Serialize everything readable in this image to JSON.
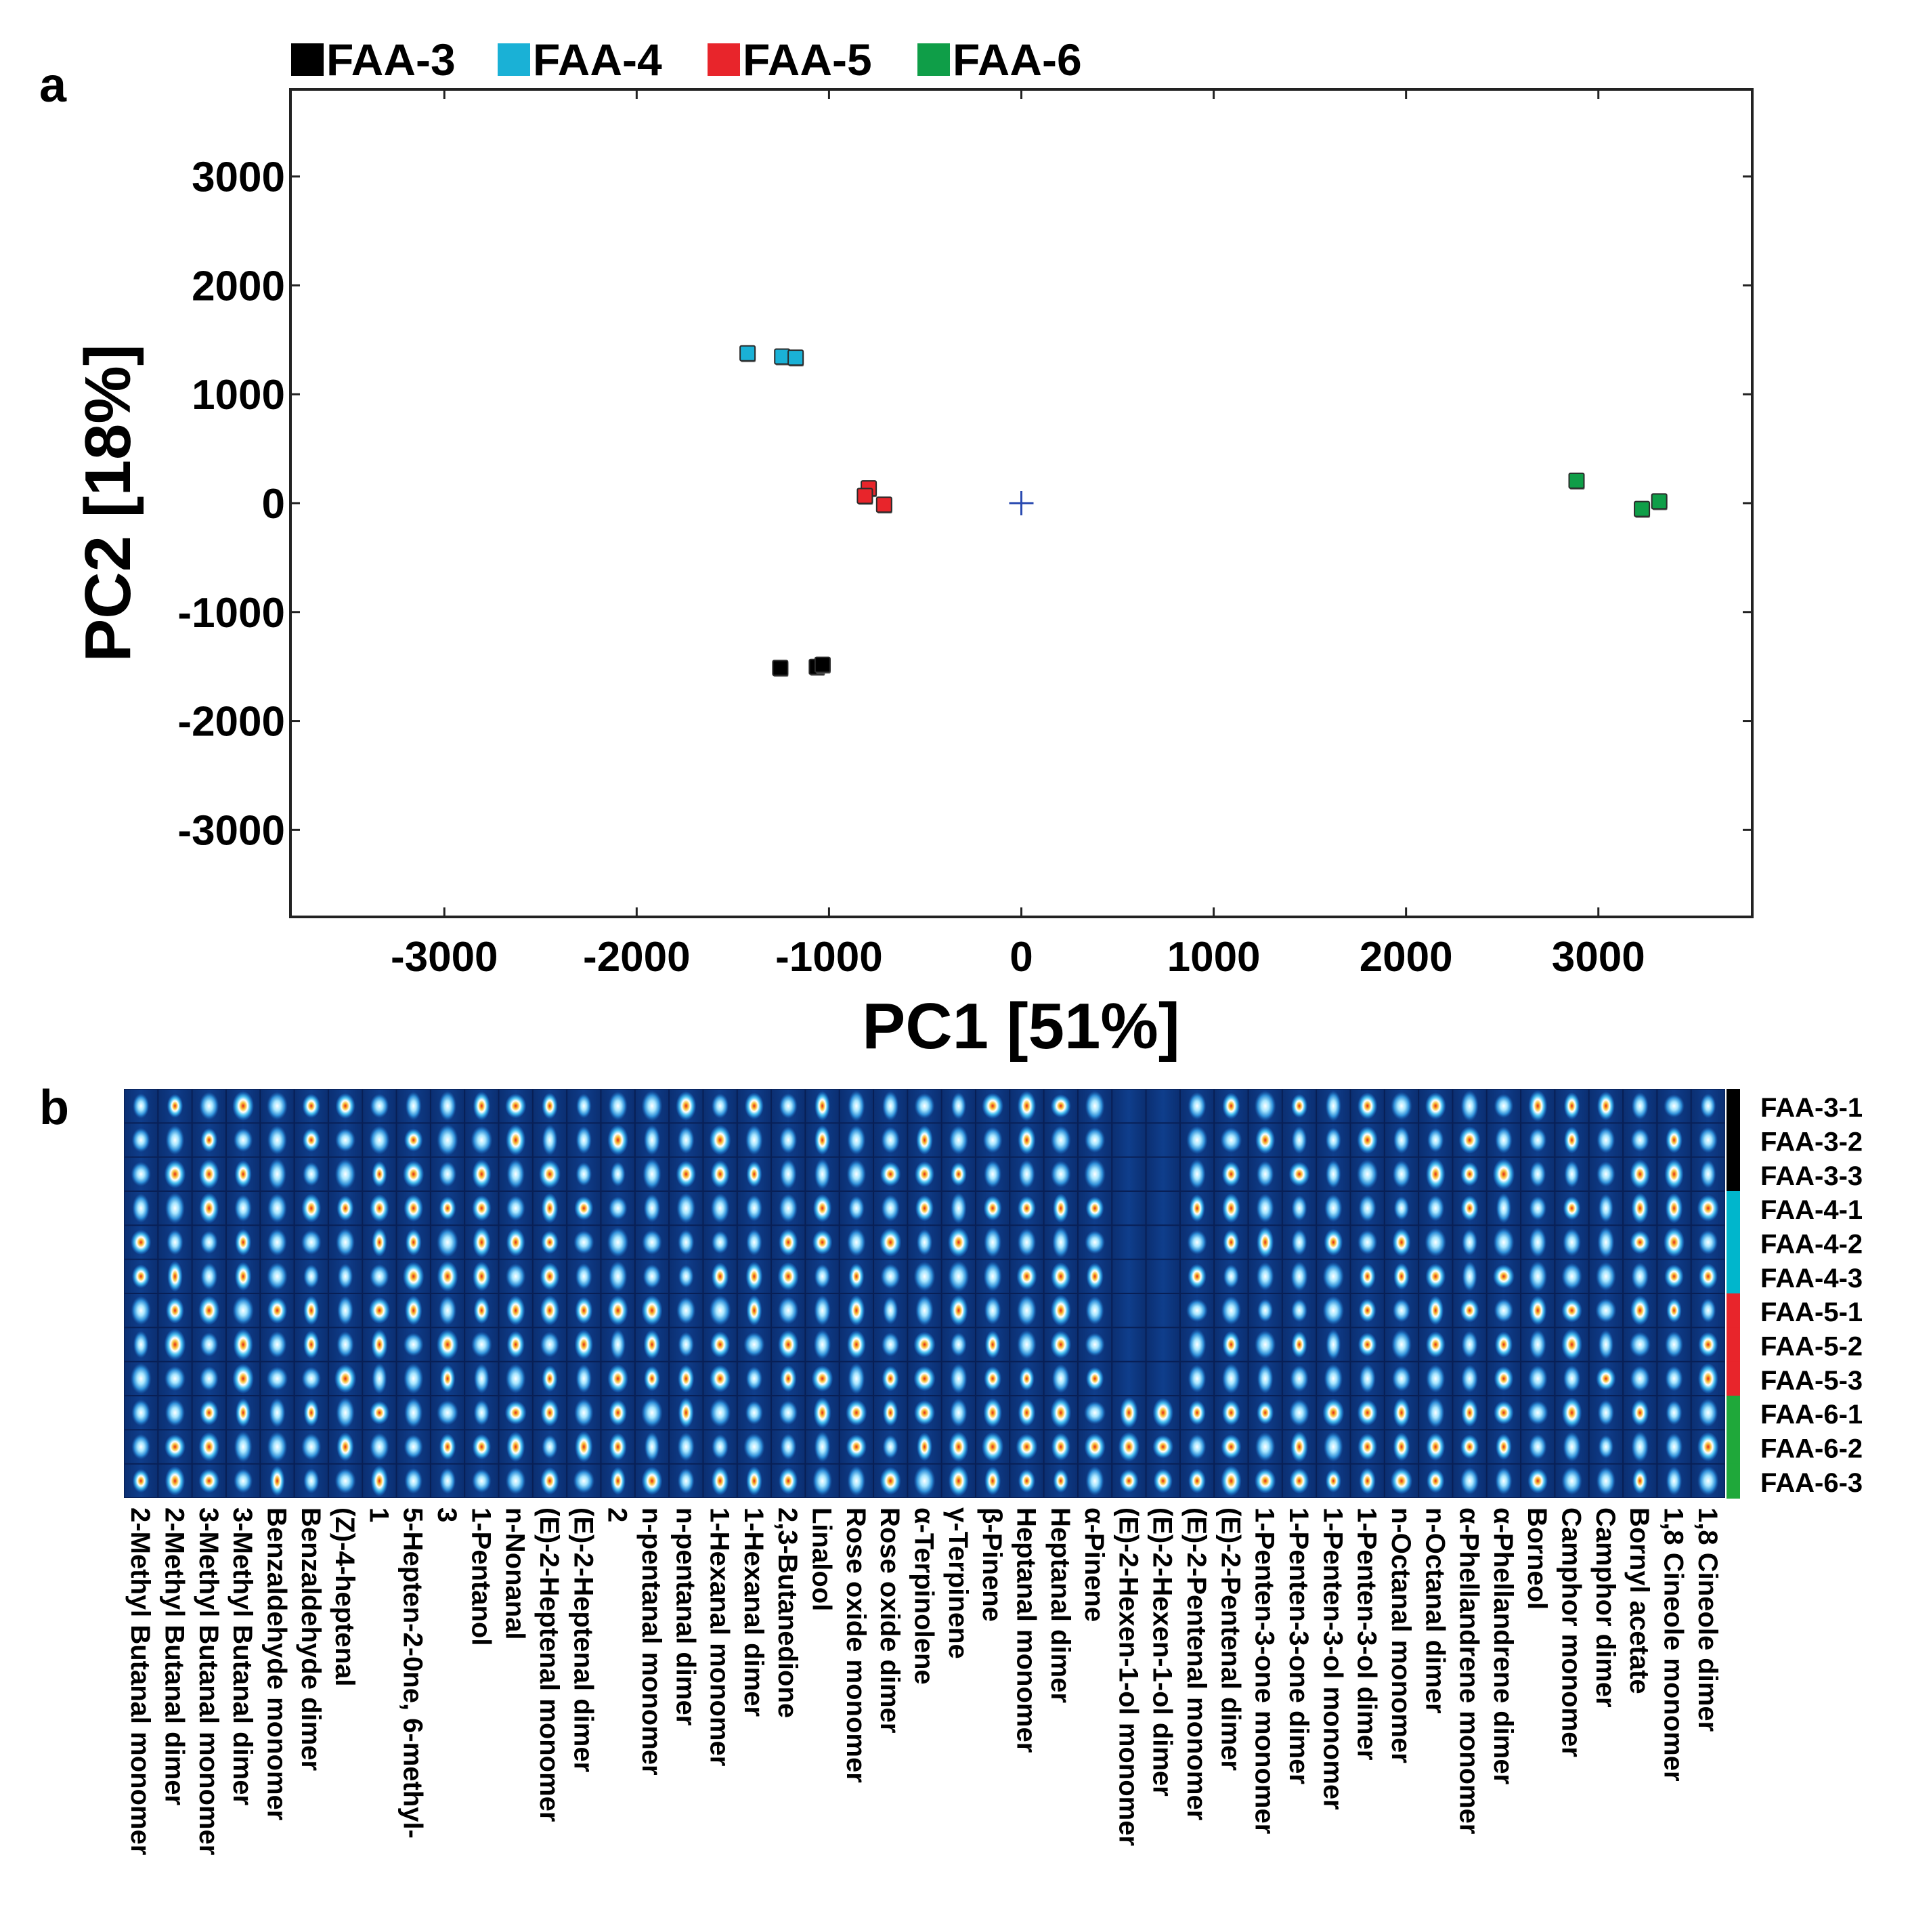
{
  "panel_a_label": "a",
  "panel_b_label": "b",
  "chart_data": [
    {
      "type": "scatter",
      "title": "",
      "xlabel": "PC1 [51%]",
      "ylabel": "PC2 [18%]",
      "xlim": [
        -3800,
        3800
      ],
      "ylim": [
        -3800,
        3800
      ],
      "xticks": [
        -3000,
        -2000,
        -1000,
        0,
        1000,
        2000,
        3000
      ],
      "yticks": [
        3000,
        2000,
        1000,
        0,
        -1000,
        -2000,
        -3000
      ],
      "legend": {
        "placement": "top",
        "entries": [
          "FAA-3",
          "FAA-4",
          "FAA-5",
          "FAA-6"
        ]
      },
      "series": [
        {
          "name": "FAA-3",
          "color": "#000000",
          "points": [
            [
              -1250,
              -1520
            ],
            [
              -1060,
              -1510
            ],
            [
              -1030,
              -1490
            ]
          ]
        },
        {
          "name": "FAA-4",
          "color": "#1ab1d6",
          "points": [
            [
              -1420,
              1370
            ],
            [
              -1240,
              1340
            ],
            [
              -1170,
              1330
            ]
          ]
        },
        {
          "name": "FAA-5",
          "color": "#e8252b",
          "points": [
            [
              -790,
              130
            ],
            [
              -810,
              60
            ],
            [
              -710,
              -20
            ]
          ]
        },
        {
          "name": "FAA-6",
          "color": "#0f9e48",
          "points": [
            [
              2890,
              200
            ],
            [
              3230,
              -60
            ],
            [
              3320,
              10
            ]
          ]
        }
      ],
      "center_marker": {
        "symbol": "+",
        "x": 0,
        "y": 0,
        "color": "#2a4ab0"
      }
    },
    {
      "type": "heatmap",
      "title": "",
      "rows": [
        {
          "label": "FAA-3-1",
          "group": "FAA-3"
        },
        {
          "label": "FAA-3-2",
          "group": "FAA-3"
        },
        {
          "label": "FAA-3-3",
          "group": "FAA-3"
        },
        {
          "label": "FAA-4-1",
          "group": "FAA-4"
        },
        {
          "label": "FAA-4-2",
          "group": "FAA-4"
        },
        {
          "label": "FAA-4-3",
          "group": "FAA-4"
        },
        {
          "label": "FAA-5-1",
          "group": "FAA-5"
        },
        {
          "label": "FAA-5-2",
          "group": "FAA-5"
        },
        {
          "label": "FAA-5-3",
          "group": "FAA-5"
        },
        {
          "label": "FAA-6-1",
          "group": "FAA-6"
        },
        {
          "label": "FAA-6-2",
          "group": "FAA-6"
        },
        {
          "label": "FAA-6-3",
          "group": "FAA-6"
        }
      ],
      "group_colors": {
        "FAA-3": "#000000",
        "FAA-4": "#00b6cc",
        "FAA-5": "#e8252b",
        "FAA-6": "#1fa83a"
      },
      "columns": [
        "2-Methyl Butanal monomer",
        "2-Methyl Butanal dimer",
        "3-Methyl Butanal monomer",
        "3-Methyl Butanal dimer",
        "Benzaldehyde monomer",
        "Benzaldehyde dimer",
        "(Z)-4-heptenal",
        "1",
        "5-Hepten-2-0ne, 6-methyl-",
        "3",
        "1-Pentanol",
        "n-Nonanal",
        "(E)-2-Heptenal monomer",
        "(E)-2-Heptenal dimer",
        "2",
        "n-pentanal monomer",
        "n-pentanal dimer",
        "1-Hexanal monomer",
        "1-Hexanal dimer",
        "2,3-Butanedione",
        "Linalool",
        "Rose oxide monomer",
        "Rose oxide dimer",
        "α-Terpinolene",
        "γ-Terpinene",
        "β-Pinene",
        "Heptanal monomer",
        "Heptanal dimer",
        "α-Pinene",
        "(E)-2-Hexen-1-ol monomer",
        "(E)-2-Hexen-1-ol dimer",
        "(E)-2-Pentenal monomer",
        "(E)-2-Pentenal dimer",
        "1-Penten-3-one monomer",
        "1-Penten-3-one dimer",
        "1-Penten-3-ol monomer",
        "1-Penten-3-ol dimer",
        "n-Octanal monomer",
        "n-Octanal dimer",
        "α-Phellandrene monomer",
        "α-Phellandrene dimer",
        "Borneol",
        "Camphor monomer",
        "Camphor dimer",
        "Bornyl acetate",
        "1,8 Cineole monomer",
        "1,8 Cineole dimer"
      ],
      "colormap": [
        "#050d2e",
        "#0a2a6e",
        "#1a63b8",
        "#3fb3ee",
        "#ffffff",
        "#f0a020",
        "#e02a10"
      ]
    }
  ]
}
